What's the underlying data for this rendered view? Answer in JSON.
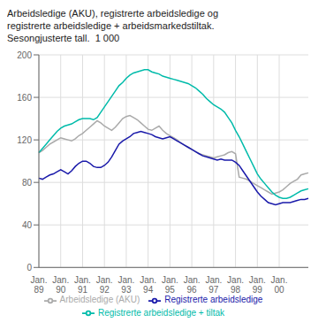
{
  "chart_data": {
    "type": "line",
    "title": "Arbeidsledige (AKU), registrerte arbeidsledige og\nregistrerte arbeidsledige + arbeidsmarkedstiltak.\nSesongjusterte tall.  1 000",
    "categories": [
      "Jan.\n89",
      null,
      null,
      null,
      null,
      null,
      "Jan.\n90",
      null,
      null,
      null,
      null,
      null,
      "Jan.\n91",
      null,
      null,
      null,
      null,
      null,
      "Jan.\n92",
      null,
      null,
      null,
      null,
      null,
      "Jan.\n93",
      null,
      null,
      null,
      null,
      null,
      "Jan.\n94",
      null,
      null,
      null,
      null,
      null,
      "Jan.\n95",
      null,
      null,
      null,
      null,
      null,
      "Jan.\n96",
      null,
      null,
      null,
      null,
      null,
      "Jan.\n97",
      null,
      null,
      null,
      null,
      null,
      "Jan.\n98",
      null,
      null,
      null,
      null,
      null,
      "Jan.\n99",
      null,
      null,
      null,
      null,
      null,
      "Jan.\n00",
      null,
      null,
      null,
      null,
      null,
      null,
      null,
      null
    ],
    "series": [
      {
        "name": "Arbeidsledige (AKU)",
        "color": "#aaaaaa",
        "values": [
          108,
          110,
          113,
          116,
          118,
          120,
          122,
          121,
          120,
          119,
          121,
          124,
          126,
          129,
          132,
          135,
          138,
          136,
          133,
          131,
          129,
          132,
          136,
          140,
          142,
          143,
          141,
          139,
          136,
          133,
          130,
          129,
          131,
          133,
          129,
          126,
          124,
          122,
          120,
          117,
          115,
          113,
          111,
          109,
          107,
          106,
          105,
          104,
          103,
          104,
          105,
          106,
          108,
          109,
          107,
          85,
          84,
          83,
          81,
          79,
          77,
          75,
          73,
          71,
          69,
          70,
          71,
          73,
          76,
          79,
          81,
          83,
          87,
          88,
          89
        ]
      },
      {
        "name": "Registrerte arbeidsledige",
        "color": "#1a1aaa",
        "values": [
          84,
          83,
          85,
          87,
          88,
          90,
          92,
          90,
          88,
          91,
          95,
          98,
          100,
          100,
          98,
          95,
          94,
          94,
          96,
          99,
          104,
          110,
          116,
          119,
          121,
          123,
          126,
          127,
          128,
          127,
          126,
          125,
          123,
          122,
          121,
          122,
          123,
          121,
          119,
          117,
          115,
          113,
          111,
          109,
          107,
          105,
          104,
          103,
          102,
          101,
          102,
          101,
          101,
          101,
          99,
          96,
          91,
          86,
          81,
          76,
          71,
          67,
          64,
          61,
          60,
          59,
          60,
          61,
          61,
          61,
          62,
          63,
          64,
          64,
          65
        ]
      },
      {
        "name": "Registrerte arbeidsledige + tiltak",
        "color": "#00bbaa",
        "values": [
          108,
          112,
          116,
          120,
          124,
          128,
          131,
          133,
          134,
          135,
          137,
          139,
          140,
          140,
          140,
          139,
          141,
          146,
          151,
          156,
          161,
          166,
          171,
          174,
          178,
          181,
          183,
          184,
          185,
          186,
          186,
          184,
          183,
          182,
          180,
          179,
          178,
          177,
          176,
          175,
          174,
          173,
          171,
          169,
          166,
          163,
          159,
          156,
          153,
          151,
          149,
          146,
          141,
          136,
          129,
          123,
          116,
          109,
          102,
          95,
          88,
          83,
          79,
          75,
          71,
          68,
          66,
          65,
          65,
          66,
          68,
          70,
          72,
          73,
          74
        ]
      }
    ],
    "ylim": [
      0,
      200
    ],
    "yticks": [
      0,
      40,
      80,
      120,
      160,
      200
    ],
    "grid": true,
    "legend": "bottom"
  }
}
